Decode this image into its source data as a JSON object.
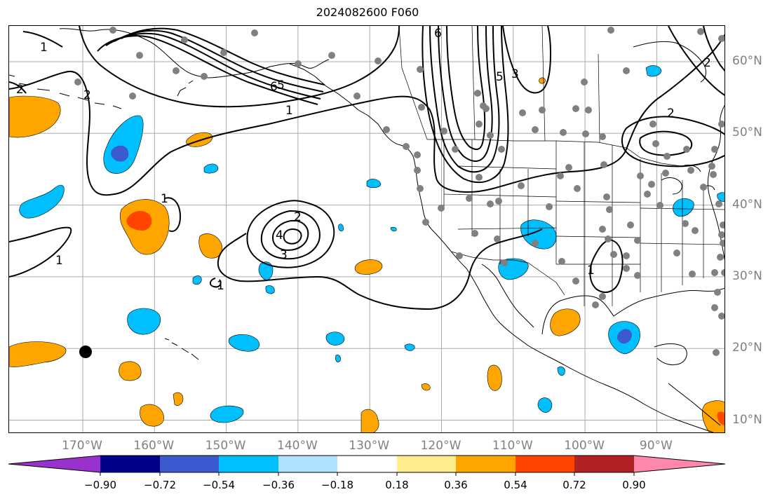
{
  "title": "2024082600 F060",
  "lon_ticks": [
    {
      "value": -170,
      "label": "170°W"
    },
    {
      "value": -160,
      "label": "160°W"
    },
    {
      "value": -150,
      "label": "150°W"
    },
    {
      "value": -140,
      "label": "140°W"
    },
    {
      "value": -130,
      "label": "130°W"
    },
    {
      "value": -120,
      "label": "120°W"
    },
    {
      "value": -110,
      "label": "110°W"
    },
    {
      "value": -100,
      "label": "100°W"
    },
    {
      "value": -90,
      "label": "90°W"
    }
  ],
  "lat_ticks": [
    {
      "value": 60,
      "label": "60°N"
    },
    {
      "value": 50,
      "label": "50°N"
    },
    {
      "value": 40,
      "label": "40°N"
    },
    {
      "value": 30,
      "label": "30°N"
    },
    {
      "value": 20,
      "label": "20°N"
    },
    {
      "value": 10,
      "label": "10°N"
    }
  ],
  "colorbar": {
    "colors": [
      "#9932cc",
      "#00008b",
      "#3a5acd",
      "#00bfff",
      "#b0e2ff",
      "#ffffff",
      "#ffec8b",
      "#ffa500",
      "#ff4500",
      "#b22222",
      "#ff88aa"
    ],
    "labels": [
      "−0.90",
      "−0.72",
      "−0.54",
      "−0.36",
      "−0.18",
      "0.18",
      "0.36",
      "0.54",
      "0.72",
      "0.90"
    ]
  },
  "contour_labels": [
    "1",
    "2",
    "3",
    "4",
    "5",
    "6"
  ],
  "colors": {
    "positive": "#ffa500",
    "negative": "#00bfff",
    "contour": "#000000",
    "station": "#808080"
  }
}
